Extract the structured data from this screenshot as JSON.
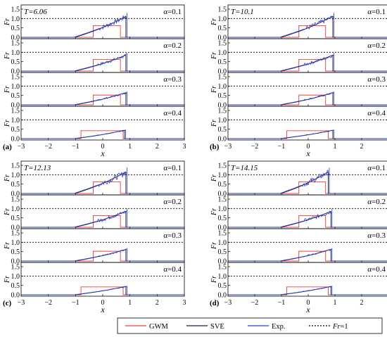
{
  "figure": {
    "y_axis_label": "Fr",
    "x_axis_label": "x",
    "y_ticks": [
      "0.0",
      "0.5",
      "1.0",
      "1.5"
    ],
    "x_ticks": [
      "−3",
      "−2",
      "−1",
      "0",
      "1",
      "2",
      "3"
    ],
    "alpha_labels": [
      "α=0.1",
      "α=0.2",
      "α=0.3",
      "α=0.4"
    ]
  },
  "legend": {
    "gwm": "GWM",
    "sve": "SVE",
    "exp": "Exp.",
    "fr": "Fr=1"
  },
  "colors": {
    "gwm": "#e8413c",
    "sve": "#1a1f3c",
    "exp": "#2b3cd8",
    "ref": "#000000"
  },
  "chart_data": [
    {
      "type": "line",
      "panel": "(a)",
      "time_label": "T=6.06",
      "xlim": [
        -3,
        3
      ],
      "ylim": [
        0,
        1.5
      ],
      "reference_line": 1.0,
      "subplots": [
        {
          "alpha": 0.1,
          "gwm": {
            "x0": -0.35,
            "x1": 0.65,
            "h": 0.62
          },
          "front": 0.85,
          "peak": 1.12,
          "noise": 0.12
        },
        {
          "alpha": 0.2,
          "gwm": {
            "x0": -0.35,
            "x1": 0.65,
            "h": 0.62
          },
          "front": 0.85,
          "peak": 0.85,
          "noise": 0.08
        },
        {
          "alpha": 0.3,
          "gwm": {
            "x0": -0.35,
            "x1": 0.65,
            "h": 0.52
          },
          "front": 0.85,
          "peak": 0.65,
          "noise": 0.04
        },
        {
          "alpha": 0.4,
          "gwm": {
            "x0": -0.8,
            "x1": 0.75,
            "h": 0.42
          },
          "front": 0.8,
          "peak": 0.45,
          "noise": 0.02
        }
      ]
    },
    {
      "type": "line",
      "panel": "(b)",
      "time_label": "T=10.1",
      "xlim": [
        -3,
        3
      ],
      "ylim": [
        0,
        1.5
      ],
      "reference_line": 1.0,
      "subplots": [
        {
          "alpha": 0.1,
          "gwm": {
            "x0": -0.35,
            "x1": 0.65,
            "h": 0.62
          },
          "front": 0.92,
          "peak": 1.12,
          "noise": 0.12
        },
        {
          "alpha": 0.2,
          "gwm": {
            "x0": -0.35,
            "x1": 0.65,
            "h": 0.62
          },
          "front": 0.92,
          "peak": 0.85,
          "noise": 0.08
        },
        {
          "alpha": 0.3,
          "gwm": {
            "x0": -0.35,
            "x1": 0.65,
            "h": 0.52
          },
          "front": 0.92,
          "peak": 0.65,
          "noise": 0.04
        },
        {
          "alpha": 0.4,
          "gwm": {
            "x0": -0.8,
            "x1": 0.75,
            "h": 0.42
          },
          "front": 0.92,
          "peak": 0.45,
          "noise": 0.02
        }
      ]
    },
    {
      "type": "line",
      "panel": "(c)",
      "time_label": "T=12.13",
      "xlim": [
        -3,
        3
      ],
      "ylim": [
        0,
        1.5
      ],
      "reference_line": 1.0,
      "subplots": [
        {
          "alpha": 0.1,
          "gwm": {
            "x0": -0.35,
            "x1": 0.65,
            "h": 0.62
          },
          "front": 0.85,
          "peak": 1.15,
          "noise": 0.15
        },
        {
          "alpha": 0.2,
          "gwm": {
            "x0": -0.35,
            "x1": 0.65,
            "h": 0.62
          },
          "front": 0.85,
          "peak": 0.85,
          "noise": 0.1
        },
        {
          "alpha": 0.3,
          "gwm": {
            "x0": -0.35,
            "x1": 0.65,
            "h": 0.52
          },
          "front": 0.85,
          "peak": 0.62,
          "noise": 0.04
        },
        {
          "alpha": 0.4,
          "gwm": {
            "x0": -0.8,
            "x1": 0.75,
            "h": 0.42
          },
          "front": 0.85,
          "peak": 0.45,
          "noise": 0.02
        }
      ]
    },
    {
      "type": "line",
      "panel": "(d)",
      "time_label": "T=14.15",
      "xlim": [
        -3,
        3
      ],
      "ylim": [
        0,
        1.5
      ],
      "reference_line": 1.0,
      "subplots": [
        {
          "alpha": 0.1,
          "gwm": {
            "x0": -0.35,
            "x1": 0.65,
            "h": 0.62
          },
          "front": 0.75,
          "peak": 1.15,
          "noise": 0.15
        },
        {
          "alpha": 0.2,
          "gwm": {
            "x0": -0.35,
            "x1": 0.65,
            "h": 0.62
          },
          "front": 0.85,
          "peak": 0.85,
          "noise": 0.1
        },
        {
          "alpha": 0.3,
          "gwm": {
            "x0": -0.35,
            "x1": 0.65,
            "h": 0.52
          },
          "front": 0.85,
          "peak": 0.62,
          "noise": 0.04
        },
        {
          "alpha": 0.4,
          "gwm": {
            "x0": -0.8,
            "x1": 0.75,
            "h": 0.42
          },
          "front": 0.85,
          "peak": 0.45,
          "noise": 0.02
        }
      ]
    }
  ]
}
